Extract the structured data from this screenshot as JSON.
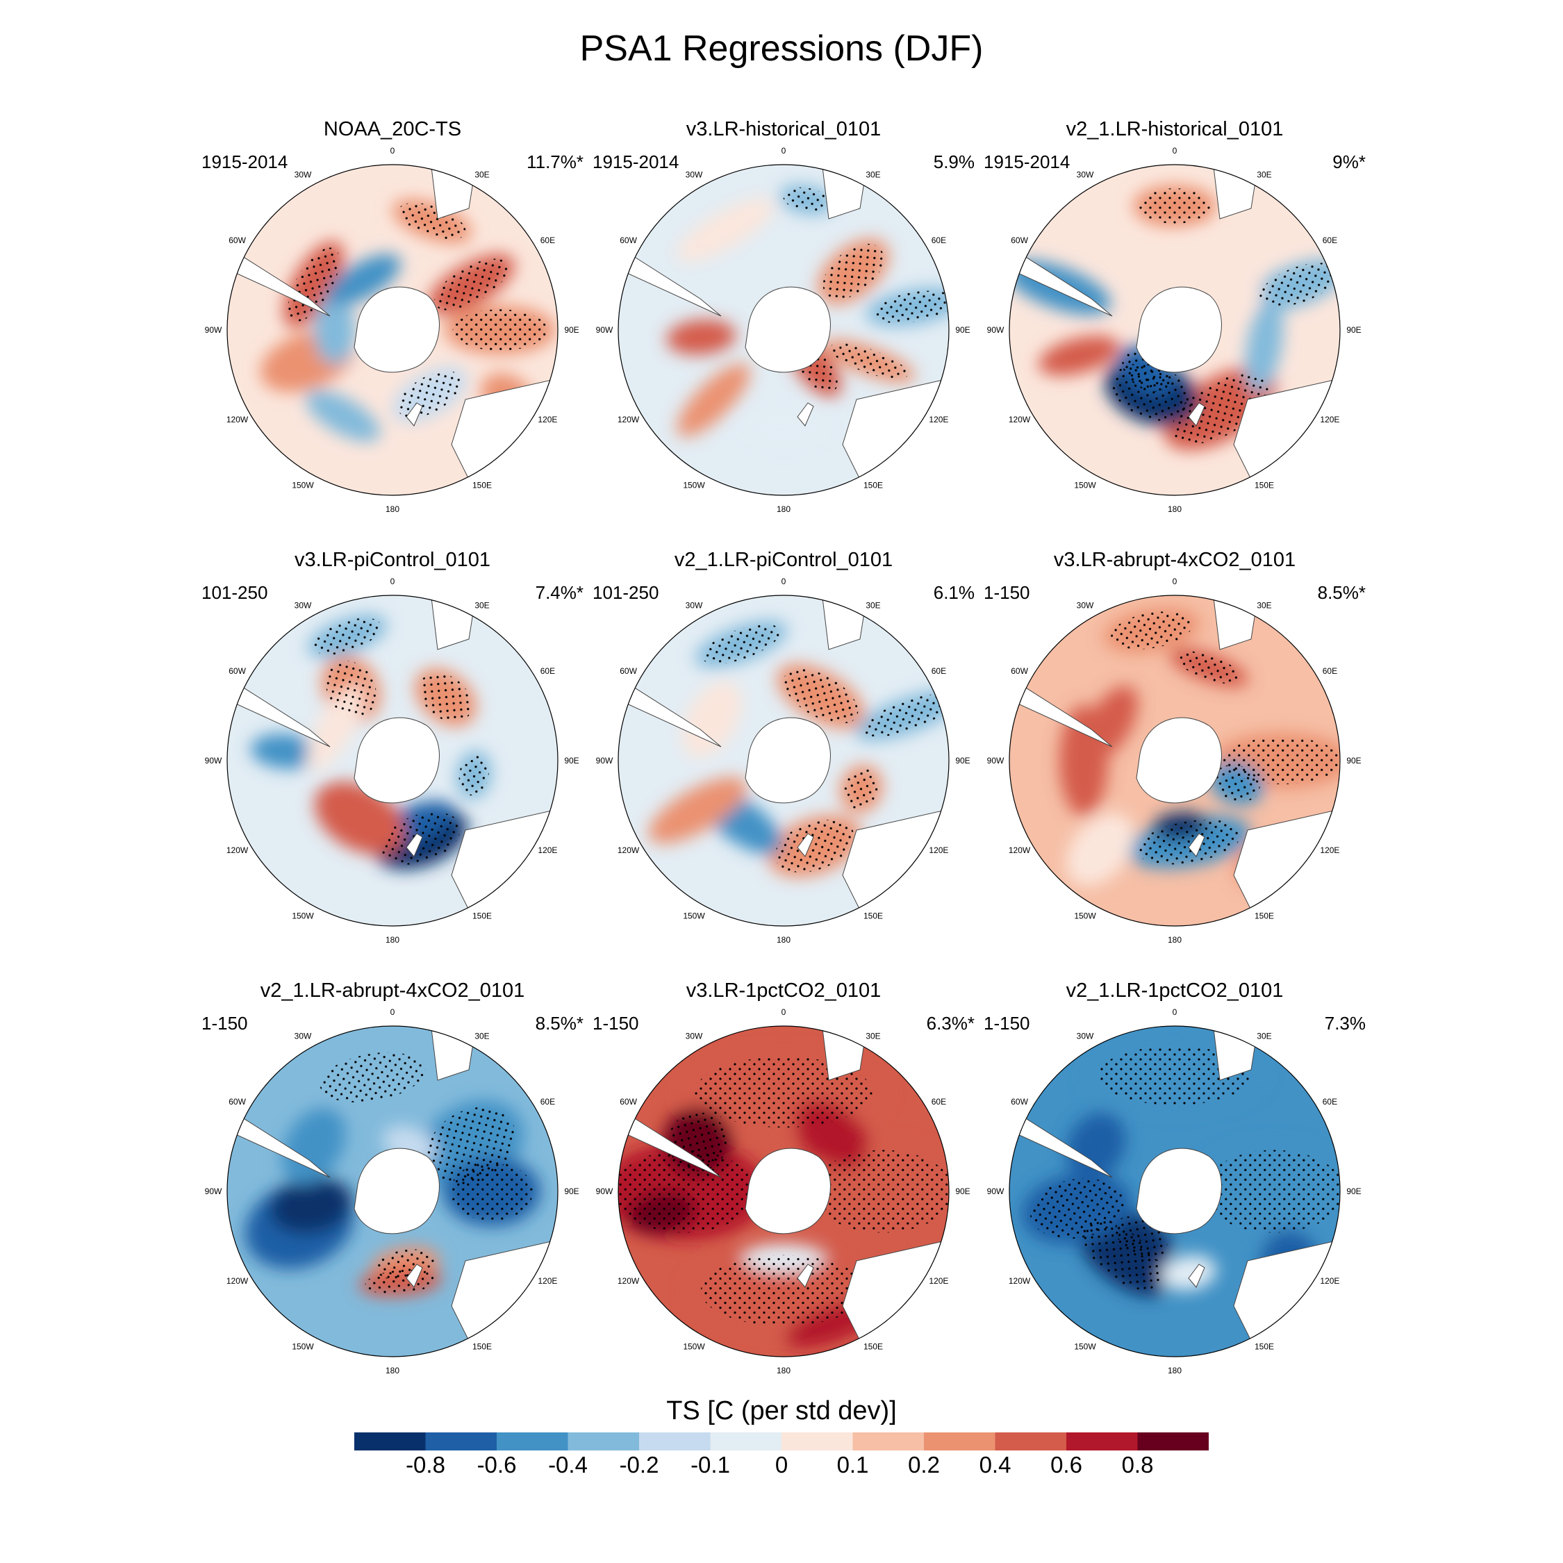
{
  "title": "PSA1 Regressions (DJF)",
  "colorbar": {
    "label": "TS [C (per std dev)]",
    "colors": [
      "#08306b",
      "#1f5fa6",
      "#4292c6",
      "#82badb",
      "#c6dbef",
      "#e3edf4",
      "#fbe6dc",
      "#f6bfa6",
      "#eb9271",
      "#d45c4b",
      "#b2182b",
      "#67001f"
    ],
    "ticks": [
      "-0.8",
      "-0.6",
      "-0.4",
      "-0.2",
      "-0.1",
      "0",
      "0.1",
      "0.2",
      "0.4",
      "0.6",
      "0.8"
    ]
  },
  "lon_labels": [
    "0",
    "30E",
    "60E",
    "90E",
    "120E",
    "150E",
    "180",
    "150W",
    "120W",
    "90W",
    "60W",
    "30W"
  ],
  "chart_data": {
    "type": "heatmap",
    "title": "PSA1 Regressions (DJF)",
    "colorbar_label": "TS [C (per std dev)]",
    "levels": [
      -0.8,
      -0.6,
      -0.4,
      -0.2,
      -0.1,
      0,
      0.1,
      0.2,
      0.4,
      0.6,
      0.8
    ],
    "panels": [
      {
        "name": "NOAA_20C-TS",
        "period": "1915-2014",
        "variance": "11.7%*"
      },
      {
        "name": "v3.LR-historical_0101",
        "period": "1915-2014",
        "variance": "5.9%"
      },
      {
        "name": "v2_1.LR-historical_0101",
        "period": "1915-2014",
        "variance": "9%*"
      },
      {
        "name": "v3.LR-piControl_0101",
        "period": "101-250",
        "variance": "7.4%*"
      },
      {
        "name": "v2_1.LR-piControl_0101",
        "period": "101-250",
        "variance": "6.1%"
      },
      {
        "name": "v3.LR-abrupt-4xCO2_0101",
        "period": "1-150",
        "variance": "8.5%*"
      },
      {
        "name": "v2_1.LR-abrupt-4xCO2_0101",
        "period": "1-150",
        "variance": "8.5%*"
      },
      {
        "name": "v3.LR-1pctCO2_0101",
        "period": "1-150",
        "variance": "6.3%*"
      },
      {
        "name": "v2_1.LR-1pctCO2_0101",
        "period": "1-150",
        "variance": "7.3%"
      }
    ]
  }
}
